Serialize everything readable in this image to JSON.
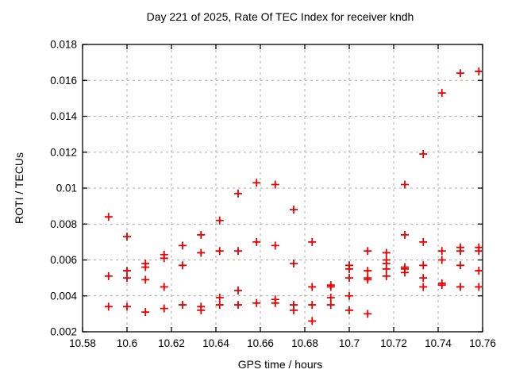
{
  "chart_data": {
    "type": "scatter",
    "title": "Day 221 of 2025, Rate Of TEC Index for receiver kndh",
    "xlabel": "GPS time / hours",
    "ylabel": "ROTI / TECUs",
    "xlim": [
      10.58,
      10.76
    ],
    "ylim": [
      0.002,
      0.018
    ],
    "grid": true,
    "legend_position": "none",
    "xticks": {
      "values": [
        10.58,
        10.6,
        10.62,
        10.64,
        10.66,
        10.68,
        10.7,
        10.72,
        10.74,
        10.76
      ],
      "labels": [
        "10.58",
        "10.6",
        "10.62",
        "10.64",
        "10.66",
        "10.68",
        "10.7",
        "10.72",
        "10.74",
        "10.76"
      ]
    },
    "yticks": {
      "values": [
        0.002,
        0.004,
        0.006,
        0.008,
        0.01,
        0.012,
        0.014,
        0.016,
        0.018
      ],
      "labels": [
        "0.002",
        "0.004",
        "0.006",
        "0.008",
        "0.01",
        "0.012",
        "0.014",
        "0.016",
        "0.018"
      ]
    },
    "colors": {
      "marker": "#e60000",
      "grid": "#ababab",
      "axis": "#000000"
    },
    "marker_shape": "plus",
    "series": [
      {
        "name": "roti",
        "points": [
          [
            10.5917,
            0.0084
          ],
          [
            10.5917,
            0.0051
          ],
          [
            10.5917,
            0.0034
          ],
          [
            10.6,
            0.0073
          ],
          [
            10.6,
            0.0054
          ],
          [
            10.6,
            0.005
          ],
          [
            10.6,
            0.0034
          ],
          [
            10.6083,
            0.0058
          ],
          [
            10.6083,
            0.0056
          ],
          [
            10.6083,
            0.0049
          ],
          [
            10.6083,
            0.0031
          ],
          [
            10.6167,
            0.0063
          ],
          [
            10.6167,
            0.0061
          ],
          [
            10.6167,
            0.0045
          ],
          [
            10.6167,
            0.0033
          ],
          [
            10.625,
            0.0068
          ],
          [
            10.625,
            0.0057
          ],
          [
            10.625,
            0.0035
          ],
          [
            10.6333,
            0.0074
          ],
          [
            10.6333,
            0.0064
          ],
          [
            10.6333,
            0.0034
          ],
          [
            10.6333,
            0.0032
          ],
          [
            10.6417,
            0.0082
          ],
          [
            10.6417,
            0.0065
          ],
          [
            10.6417,
            0.0039
          ],
          [
            10.6417,
            0.0035
          ],
          [
            10.65,
            0.0097
          ],
          [
            10.65,
            0.0065
          ],
          [
            10.65,
            0.0043
          ],
          [
            10.65,
            0.0035
          ],
          [
            10.6583,
            0.0103
          ],
          [
            10.6583,
            0.007
          ],
          [
            10.6583,
            0.0036
          ],
          [
            10.6667,
            0.0102
          ],
          [
            10.6667,
            0.0068
          ],
          [
            10.6667,
            0.0038
          ],
          [
            10.6667,
            0.0036
          ],
          [
            10.675,
            0.0088
          ],
          [
            10.675,
            0.0058
          ],
          [
            10.675,
            0.0035
          ],
          [
            10.675,
            0.0032
          ],
          [
            10.6833,
            0.007
          ],
          [
            10.6833,
            0.0045
          ],
          [
            10.6833,
            0.0035
          ],
          [
            10.6833,
            0.0026
          ],
          [
            10.6917,
            0.0046
          ],
          [
            10.6917,
            0.0045
          ],
          [
            10.6917,
            0.0039
          ],
          [
            10.6917,
            0.0035
          ],
          [
            10.7,
            0.0057
          ],
          [
            10.7,
            0.0055
          ],
          [
            10.7,
            0.005
          ],
          [
            10.7,
            0.004
          ],
          [
            10.7,
            0.0032
          ],
          [
            10.7083,
            0.0065
          ],
          [
            10.7083,
            0.0054
          ],
          [
            10.7083,
            0.005
          ],
          [
            10.7083,
            0.0049
          ],
          [
            10.7083,
            0.003
          ],
          [
            10.7167,
            0.0064
          ],
          [
            10.7167,
            0.006
          ],
          [
            10.7167,
            0.0058
          ],
          [
            10.7167,
            0.0055
          ],
          [
            10.7167,
            0.0051
          ],
          [
            10.725,
            0.0102
          ],
          [
            10.725,
            0.0074
          ],
          [
            10.725,
            0.0056
          ],
          [
            10.725,
            0.0055
          ],
          [
            10.725,
            0.0053
          ],
          [
            10.7333,
            0.0119
          ],
          [
            10.7333,
            0.007
          ],
          [
            10.7333,
            0.0057
          ],
          [
            10.7333,
            0.005
          ],
          [
            10.7333,
            0.0045
          ],
          [
            10.7417,
            0.0153
          ],
          [
            10.7417,
            0.0065
          ],
          [
            10.7417,
            0.006
          ],
          [
            10.7417,
            0.0047
          ],
          [
            10.7417,
            0.0046
          ],
          [
            10.75,
            0.0164
          ],
          [
            10.75,
            0.0067
          ],
          [
            10.75,
            0.0065
          ],
          [
            10.75,
            0.0057
          ],
          [
            10.75,
            0.0045
          ],
          [
            10.7583,
            0.0165
          ],
          [
            10.7583,
            0.0067
          ],
          [
            10.7583,
            0.0065
          ],
          [
            10.7583,
            0.0054
          ],
          [
            10.7583,
            0.0045
          ]
        ]
      }
    ]
  }
}
